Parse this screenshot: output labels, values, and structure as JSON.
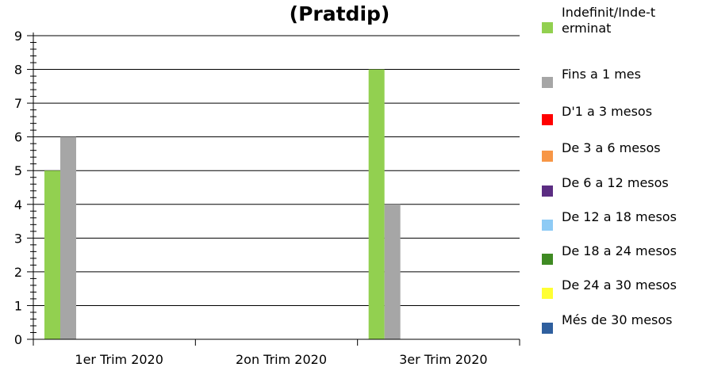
{
  "chart_data": {
    "type": "bar",
    "title": "(Pratdip)",
    "categories": [
      "1er Trim 2020",
      "2on Trim 2020",
      "3er Trim 2020"
    ],
    "series": [
      {
        "name": "Indefinit/Inde-terminat",
        "color": "#92d050",
        "values": [
          5,
          0,
          8
        ]
      },
      {
        "name": "Fins a 1 mes",
        "color": "#a6a6a6",
        "values": [
          6,
          0,
          4
        ]
      },
      {
        "name": "D'1 a 3 mesos",
        "color": "#ff0000",
        "values": [
          0,
          0,
          0
        ]
      },
      {
        "name": "De 3 a 6 mesos",
        "color": "#f79646",
        "values": [
          0,
          0,
          0
        ]
      },
      {
        "name": "De 6 a 12 mesos",
        "color": "#5b2d82",
        "values": [
          0,
          0,
          0
        ]
      },
      {
        "name": "De 12 a 18 mesos",
        "color": "#8ecbf5",
        "values": [
          0,
          0,
          0
        ]
      },
      {
        "name": "De 18 a 24 mesos",
        "color": "#3f8a23",
        "values": [
          0,
          0,
          0
        ]
      },
      {
        "name": "De 24 a 30 mesos",
        "color": "#ffff33",
        "values": [
          0,
          0,
          0
        ]
      },
      {
        "name": "Més de 30 mesos",
        "color": "#2f5f9e",
        "values": [
          0,
          0,
          0
        ]
      }
    ],
    "ylim": [
      0,
      9
    ],
    "yticks": [
      0,
      1,
      2,
      3,
      4,
      5,
      6,
      7,
      8,
      9
    ],
    "grid": true,
    "legend": "right"
  }
}
